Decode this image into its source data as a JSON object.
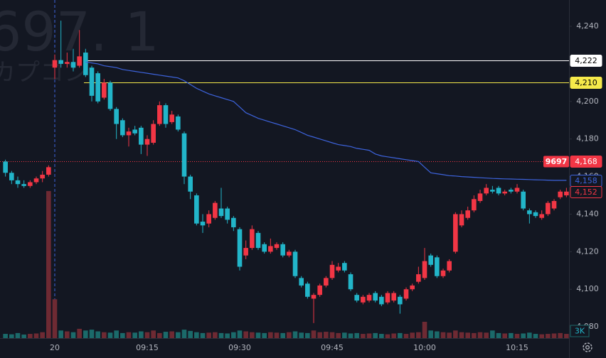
{
  "chart_data": {
    "type": "candlestick",
    "watermark": {
      "symbol": "697. 1",
      "name": "カプコン"
    },
    "categories": [
      null,
      null,
      null,
      null,
      null,
      null,
      null,
      null,
      "20",
      null,
      null,
      null,
      null,
      null,
      null,
      null,
      null,
      null,
      null,
      null,
      null,
      null,
      null,
      "09:15",
      null,
      null,
      null,
      null,
      null,
      null,
      null,
      null,
      null,
      null,
      null,
      null,
      null,
      null,
      "09:30",
      null,
      null,
      null,
      null,
      null,
      null,
      null,
      null,
      null,
      null,
      null,
      null,
      null,
      null,
      "09:45",
      null,
      null,
      null,
      null,
      null,
      null,
      null,
      null,
      null,
      null,
      null,
      null,
      null,
      null,
      "10:00",
      null,
      null,
      null,
      null,
      null,
      null,
      null,
      null,
      null,
      null,
      null,
      null,
      null,
      null,
      "10:15",
      null,
      null,
      null,
      null,
      null,
      null,
      null,
      null
    ],
    "open": [
      4168,
      4162,
      4158,
      4156,
      4155,
      4157,
      4159,
      4161,
      4218,
      4222,
      4220,
      4221,
      4219,
      4226,
      4218,
      4215,
      4202,
      4210,
      4196,
      4190,
      4182,
      4185,
      4186,
      4177,
      4178,
      4188,
      4198,
      4189,
      4192,
      4183,
      4160,
      4150,
      4136,
      4135,
      4138,
      4143,
      4143,
      4138,
      4132,
      4118,
      4122,
      4130,
      4124,
      4120,
      4122,
      4124,
      4118,
      4120,
      4106,
      4103,
      4095,
      4097,
      4102,
      4106,
      4110,
      4114,
      4108,
      4097,
      4093,
      4094,
      4098,
      4096,
      4093,
      4094,
      4096,
      4095,
      4100,
      4104,
      4106,
      4118,
      4117,
      4107,
      4110,
      4120,
      4134,
      4138,
      4142,
      4147,
      4151,
      4153,
      4154,
      4151,
      4153,
      4152,
      4152,
      4142,
      4141,
      4138,
      4140,
      4143,
      4149,
      4150
    ],
    "high": [
      4169,
      4163,
      4160,
      4158,
      4158,
      4160,
      4163,
      4166,
      4225,
      4243,
      4226,
      4228,
      4238,
      4228,
      4219,
      4216,
      4212,
      4211,
      4197,
      4191,
      4186,
      4187,
      4187,
      4182,
      4190,
      4200,
      4199,
      4195,
      4193,
      4184,
      4161,
      4151,
      4140,
      4142,
      4147,
      4154,
      4144,
      4139,
      4133,
      4126,
      4134,
      4131,
      4125,
      4127,
      4125,
      4125,
      4121,
      4121,
      4107,
      4104,
      4098,
      4103,
      4107,
      4115,
      4114,
      4115,
      4109,
      4098,
      4097,
      4098,
      4099,
      4097,
      4099,
      4099,
      4097,
      4101,
      4103,
      4112,
      4122,
      4119,
      4118,
      4111,
      4116,
      4141,
      4142,
      4144,
      4150,
      4153,
      4156,
      4155,
      4155,
      4153,
      4154,
      4156,
      4153,
      4143,
      4142,
      4142,
      4147,
      4148,
      4153,
      4154
    ],
    "low": [
      4160,
      4156,
      4154,
      4154,
      4154,
      4156,
      4157,
      4160,
      4212,
      4218,
      4218,
      4216,
      4218,
      4213,
      4200,
      4199,
      4201,
      4195,
      4180,
      4181,
      4176,
      4182,
      4172,
      4171,
      4177,
      4187,
      4186,
      4188,
      4184,
      4156,
      4148,
      4134,
      4130,
      4133,
      4137,
      4138,
      4135,
      4131,
      4110,
      4116,
      4121,
      4121,
      4119,
      4119,
      4121,
      4117,
      4117,
      4106,
      4101,
      4095,
      4082,
      4096,
      4101,
      4105,
      4109,
      4109,
      4099,
      4093,
      4092,
      4093,
      4093,
      4091,
      4092,
      4093,
      4087,
      4094,
      4099,
      4103,
      4105,
      4112,
      4106,
      4106,
      4109,
      4119,
      4133,
      4137,
      4141,
      4146,
      4150,
      4151,
      4150,
      4150,
      4151,
      4151,
      4142,
      4135,
      4138,
      4137,
      4139,
      4142,
      4148,
      4149
    ],
    "close": [
      4162,
      4158,
      4156,
      4155,
      4157,
      4159,
      4161,
      4165,
      4222,
      4220,
      4221,
      4218,
      4224,
      4214,
      4203,
      4200,
      4210,
      4196,
      4188,
      4182,
      4184,
      4183,
      4177,
      4180,
      4188,
      4198,
      4188,
      4193,
      4185,
      4160,
      4152,
      4135,
      4134,
      4140,
      4146,
      4139,
      4137,
      4133,
      4112,
      4122,
      4132,
      4122,
      4120,
      4123,
      4124,
      4118,
      4120,
      4107,
      4102,
      4096,
      4097,
      4102,
      4106,
      4113,
      4112,
      4110,
      4100,
      4094,
      4096,
      4097,
      4094,
      4092,
      4098,
      4098,
      4092,
      4100,
      4102,
      4108,
      4115,
      4113,
      4107,
      4110,
      4115,
      4140,
      4140,
      4142,
      4148,
      4151,
      4154,
      4152,
      4151,
      4152,
      4152,
      4154,
      4143,
      4140,
      4139,
      4140,
      4146,
      4147,
      4152,
      4152
    ],
    "volume": [
      500,
      450,
      600,
      420,
      500,
      550,
      700,
      17400,
      4600,
      900,
      800,
      700,
      1100,
      900,
      1000,
      800,
      700,
      650,
      900,
      600,
      700,
      650,
      800,
      700,
      900,
      600,
      750,
      800,
      700,
      1000,
      850,
      700,
      600,
      650,
      700,
      600,
      550,
      700,
      900,
      800,
      700,
      650,
      600,
      700,
      650,
      600,
      700,
      800,
      650,
      600,
      900,
      700,
      750,
      700,
      600,
      650,
      550,
      600,
      500,
      550,
      600,
      500,
      450,
      550,
      600,
      500,
      650,
      700,
      1930,
      900,
      800,
      700,
      650,
      900,
      700,
      650,
      600,
      700,
      650,
      900,
      600,
      550,
      600,
      500,
      550,
      650,
      500,
      450,
      500,
      550,
      600,
      500
    ],
    "vlim": [
      0,
      40000
    ],
    "vwap": {
      "color": "#3d63dc",
      "values": [
        null,
        null,
        null,
        null,
        null,
        null,
        null,
        null,
        null,
        null,
        null,
        null,
        null,
        4221,
        4220.5,
        4220,
        4219,
        4218.5,
        4218,
        4217,
        4216.5,
        4216,
        4215.5,
        4215,
        4214.5,
        4214,
        4213.5,
        4213,
        4212.5,
        4211,
        4209,
        4207,
        4205.5,
        4204,
        4203,
        4202,
        4201,
        4200,
        4197,
        4194,
        4192.5,
        4191,
        4190,
        4189,
        4188,
        4187,
        4186,
        4185,
        4183.5,
        4182,
        4181,
        4180,
        4179,
        4178,
        4177,
        4176.5,
        4176,
        4175,
        4174.5,
        4174,
        4172,
        4171,
        4170.5,
        4170,
        4169.5,
        4169,
        4168.5,
        4168,
        4165,
        4162,
        4161.5,
        4161,
        4160.5,
        4160.3,
        4160,
        4159.8,
        4159.6,
        4159.4,
        4159.2,
        4159,
        4158.9,
        4158.8,
        4158.7,
        4158.6,
        4158.5,
        4158.4,
        4158.3,
        4158.2,
        4158.1,
        4158,
        4158,
        4158
      ]
    },
    "up_color": "#f23645",
    "down_color": "#22b5c9",
    "up_volume_color": "#6e2a33",
    "down_volume_color": "#1b6a6a",
    "ylim": [
      4074,
      4254
    ],
    "yticks": [
      {
        "value": 4080,
        "label": "4,080"
      },
      {
        "value": 4100,
        "label": "4,100"
      },
      {
        "value": 4120,
        "label": "4,120"
      },
      {
        "value": 4140,
        "label": "4,140"
      },
      {
        "value": 4160,
        "label": "4,160"
      },
      {
        "value": 4180,
        "label": "4,180"
      },
      {
        "value": 4200,
        "label": "4,200"
      },
      {
        "value": 4220,
        "label": "4,220"
      },
      {
        "value": 4240,
        "label": "4,240"
      }
    ],
    "price_lines": [
      {
        "value": 4222,
        "label": "4,222",
        "color": "#ffffff",
        "text_color": "#000000",
        "style": "solid"
      },
      {
        "value": 4210,
        "label": "4,210",
        "color": "#f5e94a",
        "text_color": "#000000",
        "style": "solid"
      },
      {
        "value": 4168,
        "label": "4,168",
        "name": "9697",
        "color": "#f23645",
        "text_color": "#ffffff",
        "style": "dotted"
      },
      {
        "value": 4158,
        "label": "4,158",
        "color": "#3d63dc",
        "text_color": "#3d63dc",
        "style": "none"
      },
      {
        "value": 4152,
        "label": "4,152",
        "color": "#f23645",
        "text_color": "#f23645",
        "style": "none"
      }
    ],
    "volume_label": "3K"
  }
}
